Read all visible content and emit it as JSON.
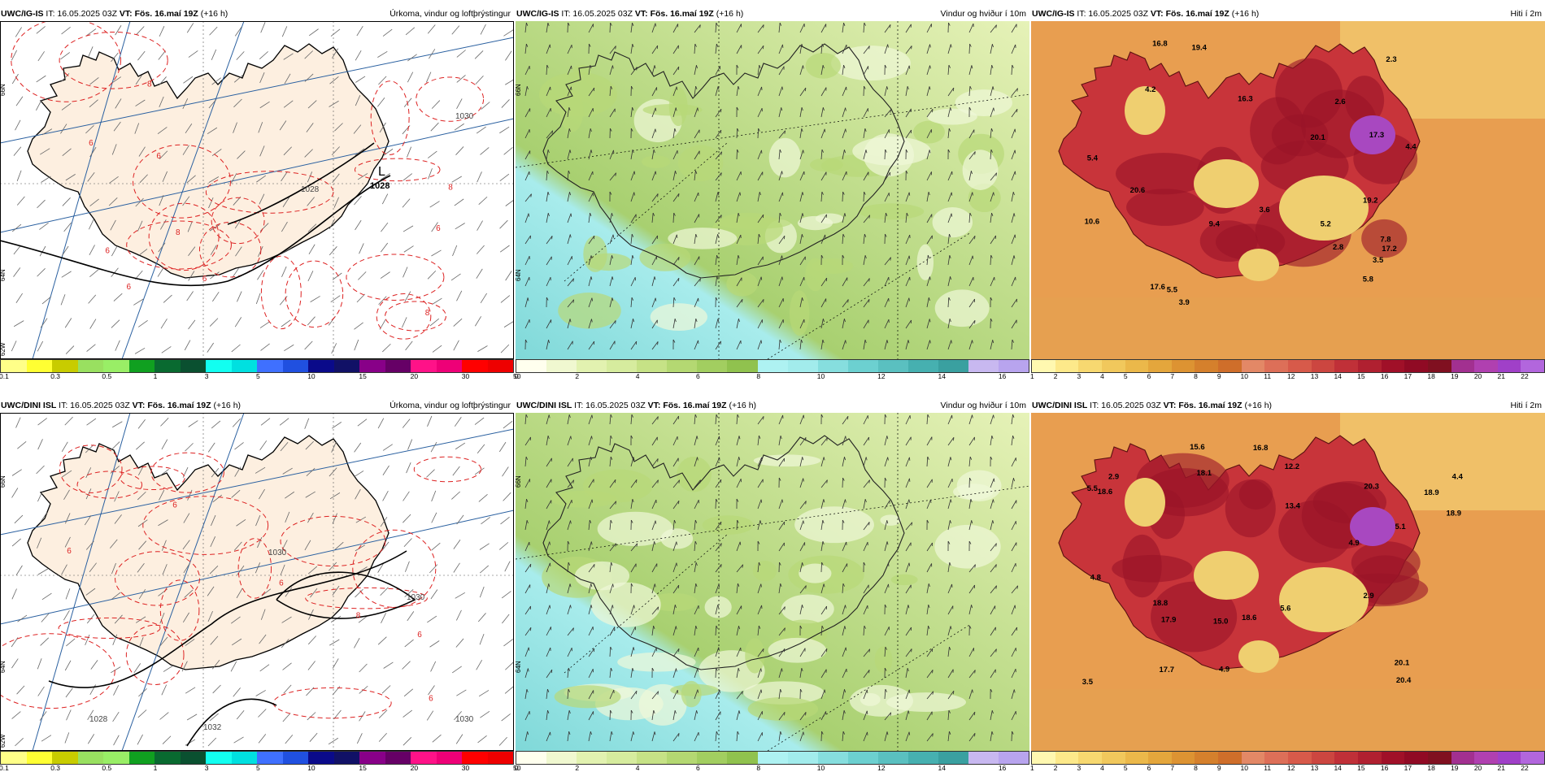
{
  "rows": [
    {
      "model": "UWC/IG-IS",
      "it": "IT: 16.05.2025 03Z",
      "vt_label": "VT:",
      "vt": "Fös. 16.maí 19Z",
      "lead": "(+16 h)",
      "panels": [
        {
          "title": "Úrkoma, vindur og loftþrýstingur",
          "type": "precip",
          "high_label": "L",
          "pressure_value": "1028",
          "isobar_labels": [
            "1030",
            "1028"
          ],
          "precip_labels": [
            "6",
            "6",
            "6",
            "6",
            "6",
            "8",
            "8",
            "8",
            "6",
            "8"
          ],
          "lat_labels": [
            "66N",
            "64N",
            "62W"
          ]
        },
        {
          "title": "Vindur og hviður í 10m",
          "type": "wind",
          "lat_labels": [
            "66N",
            "64N"
          ]
        },
        {
          "title": "Hiti í 2m",
          "type": "temp",
          "temps": [
            "16.3",
            "5.8",
            "17.3",
            "2.8",
            "4.2",
            "5.2",
            "17.2",
            "3.9",
            "20.1",
            "20.6",
            "9.4",
            "10.6",
            "5.4",
            "19.2",
            "16.8",
            "7.8",
            "2.3",
            "3.6",
            "3.5",
            "4.4",
            "17.6",
            "19.4",
            "5.5",
            "2.6"
          ]
        }
      ]
    },
    {
      "model": "UWC/DINI ISL",
      "it": "IT: 16.05.2025 03Z",
      "vt_label": "VT:",
      "vt": "Fös. 16.maí 19Z",
      "lead": "(+16 h)",
      "panels": [
        {
          "title": "Úrkoma, vindur og loftþrýstingur",
          "type": "precip",
          "high_label": "",
          "pressure_value": "",
          "isobar_labels": [
            "1030",
            "1030",
            "1028",
            "1032",
            "1030"
          ],
          "precip_labels": [
            "6",
            "6",
            "6",
            "6",
            "8",
            "6"
          ],
          "lat_labels": [
            "66N",
            "64N",
            "62W"
          ]
        },
        {
          "title": "Vindur og hviður í 10m",
          "type": "wind",
          "lat_labels": [
            "66N",
            "64N"
          ]
        },
        {
          "title": "Hiti í 2m",
          "type": "temp",
          "temps": [
            "16.8",
            "12.2",
            "4.9",
            "18.8",
            "4.4",
            "17.9",
            "4.9",
            "18.9",
            "18.6",
            "18.1",
            "20.1",
            "13.4",
            "15.0",
            "18.9",
            "5.5",
            "20.4",
            "5.6",
            "5.1",
            "2.9",
            "4.8",
            "15.6",
            "18.6",
            "20.3",
            "2.9",
            "17.7",
            "3.5"
          ]
        }
      ]
    }
  ],
  "legends": {
    "precip": {
      "colors": [
        "#ffff88",
        "#ffff33",
        "#c8cc00",
        "#99e060",
        "#99ee66",
        "#10a020",
        "#096a30",
        "#0a5030",
        "#12fff0",
        "#00e0e0",
        "#3f70ff",
        "#2050e0",
        "#0a0a8a",
        "#111166",
        "#880088",
        "#660066",
        "#ff1288",
        "#ee0077",
        "#ff0000",
        "#ee0000"
      ],
      "ticks": [
        "0.1",
        "0.3",
        "0.5",
        "1",
        "3",
        "5",
        "10",
        "15",
        "20",
        "30",
        "50"
      ]
    },
    "wind": {
      "colors": [
        "#ffffee",
        "#f0f8d0",
        "#e2f2b0",
        "#d6ec9e",
        "#c6e286",
        "#b4d872",
        "#a2ce60",
        "#90c24e",
        "#aef2f2",
        "#a2ecec",
        "#86dede",
        "#6cd0d0",
        "#5ac0c0",
        "#46b0b0",
        "#3aa0a0",
        "#c8b8f0",
        "#b8a4ee"
      ],
      "ticks": [
        "0",
        "2",
        "4",
        "6",
        "8",
        "10",
        "12",
        "14",
        "16"
      ]
    },
    "temp": {
      "colors": [
        "#fff8b0",
        "#fde98a",
        "#f7d870",
        "#f1c85c",
        "#ebb84a",
        "#e4a63c",
        "#dd9332",
        "#d5802c",
        "#cf6e2a",
        "#e38866",
        "#dd6f58",
        "#d75a4a",
        "#cc4640",
        "#c03038",
        "#b02030",
        "#a01028",
        "#900a24",
        "#801020",
        "#a23090",
        "#b040b0",
        "#a040c8",
        "#b266dd"
      ],
      "ticks": [
        "1",
        "2",
        "3",
        "4",
        "5",
        "6",
        "7",
        "8",
        "9",
        "10",
        "11",
        "12",
        "13",
        "14",
        "15",
        "16",
        "17",
        "18",
        "19",
        "20",
        "21",
        "22"
      ]
    }
  }
}
